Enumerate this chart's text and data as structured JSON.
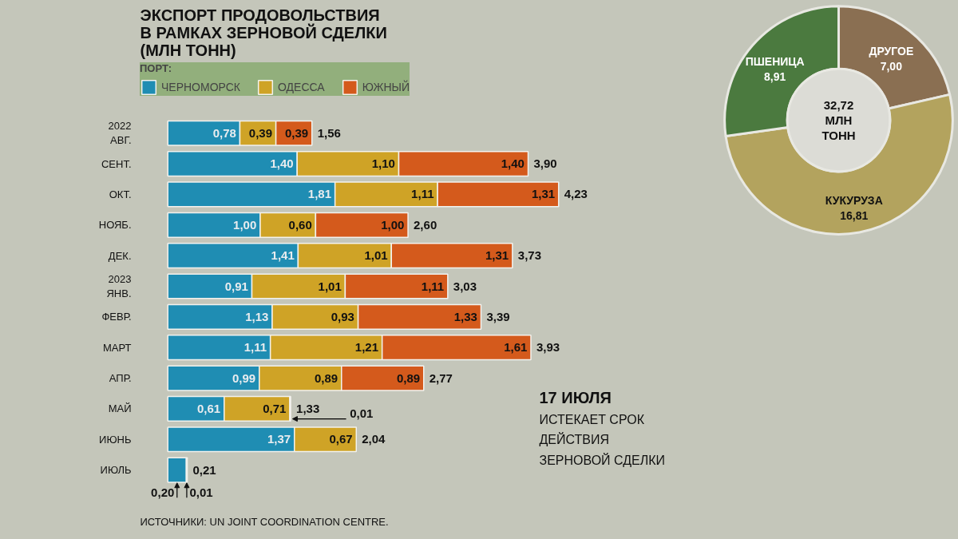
{
  "chart_data": [
    {
      "type": "bar",
      "orientation": "horizontal",
      "stacked": true,
      "title": "ЭКСПОРТ ПРОДОВОЛЬСТВИЯ\nВ РАМКАХ ЗЕРНОВОЙ СДЕЛКИ\n(МЛН ТОНН)",
      "legend_title": "ПОРТ:",
      "legend": "top left",
      "categories": [
        "2022\nАВГ.",
        "СЕНТ.",
        "ОКТ.",
        "НОЯБ.",
        "ДЕК.",
        "2023\nЯНВ.",
        "ФЕВР.",
        "МАРТ",
        "АПР.",
        "МАЙ",
        "ИЮНЬ",
        "ИЮЛЬ"
      ],
      "series": [
        {
          "name": "ЧЕРНОМОРСК",
          "color": "#1f8db3",
          "values": [
            0.78,
            1.4,
            1.81,
            1.0,
            1.41,
            0.91,
            1.13,
            1.11,
            0.99,
            0.61,
            1.37,
            0.2
          ],
          "value_labels": [
            "0,78",
            "1,40",
            "1,81",
            "1,00",
            "1,41",
            "0,91",
            "1,13",
            "1,11",
            "0,99",
            "0,61",
            "1,37",
            "0,20"
          ]
        },
        {
          "name": "ОДЕССА",
          "color": "#cfa326",
          "values": [
            0.39,
            1.1,
            1.11,
            0.6,
            1.01,
            1.01,
            0.93,
            1.21,
            0.89,
            0.71,
            0.67,
            0.01
          ],
          "value_labels": [
            "0,39",
            "1,10",
            "1,11",
            "0,60",
            "1,01",
            "1,01",
            "0,93",
            "1,21",
            "0,89",
            "0,71",
            "0,67",
            "0,01"
          ]
        },
        {
          "name": "ЮЖНЫЙ",
          "color": "#d45a1c",
          "values": [
            0.39,
            1.4,
            1.31,
            1.0,
            1.31,
            1.11,
            1.33,
            1.61,
            0.89,
            0.01,
            null,
            null
          ],
          "value_labels": [
            "0,39",
            "1,40",
            "1,31",
            "1,00",
            "1,31",
            "1,11",
            "1,33",
            "1,61",
            "0,89",
            "0,01",
            null,
            null
          ]
        }
      ],
      "totals": [
        "1,56",
        "3,90",
        "4,23",
        "2,60",
        "3,73",
        "3,03",
        "3,39",
        "3,93",
        "2,77",
        "1,33",
        "2,04",
        "0,21"
      ],
      "annotations": [
        "17 ИЮЛЯ",
        "ИСТЕКАЕТ СРОК\nДЕЙСТВИЯ\nЗЕРНОВОЙ СДЕЛКИ",
        "ИСТОЧНИКИ: UN JOINT COORDINATION CENTRE."
      ]
    },
    {
      "type": "donut",
      "categories": [
        "ДРУГОЕ",
        "КУКУРУЗА",
        "ПШЕНИЦА"
      ],
      "values": [
        7.0,
        16.81,
        8.91
      ],
      "colors": [
        "#8a6f52",
        "#b3a35e",
        "#4b7a3f"
      ],
      "value_labels": [
        "7,00",
        "16,81",
        "8,91"
      ],
      "annotations": [
        "32,72\nМЛН\nТОНН"
      ]
    }
  ]
}
